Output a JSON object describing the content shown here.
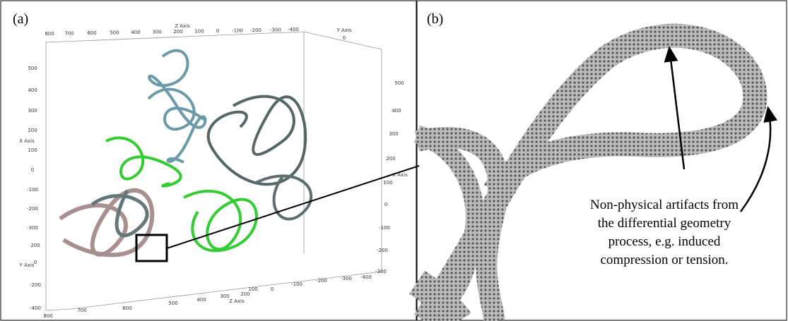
{
  "panel_a": {
    "label": "(a)",
    "top_axis": {
      "label": "Z Axis",
      "ticks": [
        "800",
        "700",
        "600",
        "500",
        "400",
        "300",
        "200",
        "100",
        "0",
        "-100",
        "-200",
        "-300",
        "-400"
      ]
    },
    "corner_axis": {
      "label": "Y Axis",
      "tick": "0"
    },
    "left_axis": {
      "x_label": "X Axis",
      "x_ticks": [
        "500",
        "400",
        "300",
        "200",
        "100",
        "0",
        "-100",
        "-200",
        "-300"
      ],
      "y_label": "Y Axis",
      "y_ticks": [
        "200",
        "0",
        "-200",
        "-400"
      ]
    },
    "right_axis": {
      "label": "X Axis",
      "ticks": [
        "500",
        "400",
        "300",
        "200",
        "100",
        "0",
        "-100",
        "-200",
        "-300"
      ]
    },
    "bottom_axis": {
      "label": "Z Axis",
      "ticks": [
        "800",
        "700",
        "600",
        "500",
        "400",
        "300",
        "200",
        "100",
        "0",
        "-100",
        "-200",
        "-300",
        "-400"
      ]
    }
  },
  "panel_b": {
    "label": "(b)",
    "annotation": [
      "Non-physical artifacts from",
      "the differential geometry",
      "process, e.g. induced",
      "compression or tension."
    ]
  }
}
